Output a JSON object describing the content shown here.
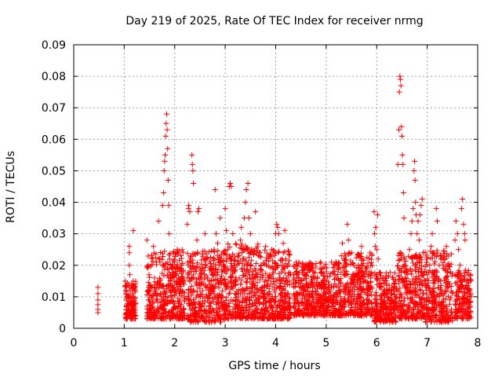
{
  "chart_data": {
    "type": "scatter",
    "title": "Day 219 of 2025, Rate Of TEC Index for receiver nrmg",
    "xlabel": "GPS time / hours",
    "ylabel": "ROTI / TECUs",
    "xlim": [
      0,
      8
    ],
    "ylim": [
      0,
      0.09
    ],
    "xticks": [
      0,
      1,
      2,
      3,
      4,
      5,
      6,
      7,
      8
    ],
    "xtick_labels": [
      "0",
      "1",
      "2",
      "3",
      "4",
      "5",
      "6",
      "7",
      "8"
    ],
    "yticks": [
      0,
      0.01,
      0.02,
      0.03,
      0.04,
      0.05,
      0.06,
      0.07,
      0.08,
      0.09
    ],
    "ytick_labels": [
      "0",
      "0.01",
      "0.02",
      "0.03",
      "0.04",
      "0.05",
      "0.06",
      "0.07",
      "0.08",
      "0.09"
    ],
    "grid": true,
    "marker": "plus",
    "color": "#ff0000",
    "series": [
      {
        "name": "ROTI",
        "points": [
          [
            0.48,
            0.013
          ],
          [
            0.48,
            0.011
          ],
          [
            0.48,
            0.009
          ],
          [
            0.48,
            0.0075
          ],
          [
            0.48,
            0.006
          ],
          [
            0.48,
            0.005
          ],
          [
            1.02,
            0.015
          ],
          [
            1.03,
            0.012
          ],
          [
            1.04,
            0.009
          ],
          [
            1.05,
            0.007
          ],
          [
            1.05,
            0.005
          ],
          [
            1.06,
            0.003
          ],
          [
            1.07,
            0.004
          ],
          [
            1.08,
            0.006
          ],
          [
            1.08,
            0.01
          ],
          [
            1.09,
            0.014
          ],
          [
            1.1,
            0.02
          ],
          [
            1.1,
            0.024
          ],
          [
            1.1,
            0.026
          ],
          [
            1.11,
            0.017
          ],
          [
            1.12,
            0.012
          ],
          [
            1.12,
            0.008
          ],
          [
            1.13,
            0.005
          ],
          [
            1.14,
            0.003
          ],
          [
            1.15,
            0.007
          ],
          [
            1.16,
            0.011
          ],
          [
            1.18,
            0.031
          ],
          [
            1.18,
            0.015
          ],
          [
            1.19,
            0.01
          ],
          [
            1.2,
            0.007
          ],
          [
            1.21,
            0.005
          ],
          [
            1.22,
            0.012
          ],
          [
            1.23,
            0.008
          ],
          [
            1.45,
            0.028
          ],
          [
            1.47,
            0.02
          ],
          [
            1.48,
            0.012
          ],
          [
            1.5,
            0.009
          ],
          [
            1.52,
            0.007
          ],
          [
            1.55,
            0.013
          ],
          [
            1.58,
            0.026
          ],
          [
            1.6,
            0.016
          ],
          [
            1.62,
            0.011
          ],
          [
            1.65,
            0.009
          ],
          [
            1.68,
            0.034
          ],
          [
            1.7,
            0.022
          ],
          [
            1.72,
            0.014
          ],
          [
            1.74,
            0.01
          ],
          [
            1.75,
            0.006
          ],
          [
            1.76,
            0.039
          ],
          [
            1.78,
            0.043
          ],
          [
            1.79,
            0.05
          ],
          [
            1.8,
            0.053
          ],
          [
            1.81,
            0.055
          ],
          [
            1.82,
            0.061
          ],
          [
            1.83,
            0.065
          ],
          [
            1.84,
            0.068
          ],
          [
            1.85,
            0.063
          ],
          [
            1.86,
            0.057
          ],
          [
            1.87,
            0.047
          ],
          [
            1.88,
            0.039
          ],
          [
            1.89,
            0.03
          ],
          [
            1.9,
            0.022
          ],
          [
            1.92,
            0.015
          ],
          [
            1.94,
            0.01
          ],
          [
            1.96,
            0.006
          ],
          [
            1.98,
            0.004
          ],
          [
            2.0,
            0.012
          ],
          [
            2.02,
            0.018
          ],
          [
            2.05,
            0.025
          ],
          [
            2.08,
            0.016
          ],
          [
            2.1,
            0.011
          ],
          [
            2.12,
            0.007
          ],
          [
            2.14,
            0.005
          ],
          [
            2.18,
            0.015
          ],
          [
            2.2,
            0.009
          ],
          [
            2.25,
            0.033
          ],
          [
            2.27,
            0.038
          ],
          [
            2.28,
            0.039
          ],
          [
            2.3,
            0.037
          ],
          [
            2.32,
            0.023
          ],
          [
            2.34,
            0.055
          ],
          [
            2.35,
            0.052
          ],
          [
            2.36,
            0.05
          ],
          [
            2.37,
            0.046
          ],
          [
            2.38,
            0.012
          ],
          [
            2.39,
            0.008
          ],
          [
            2.4,
            0.005
          ],
          [
            2.42,
            0.003
          ],
          [
            2.44,
            0.028
          ],
          [
            2.46,
            0.037
          ],
          [
            2.48,
            0.038
          ],
          [
            2.5,
            0.019
          ],
          [
            2.52,
            0.014
          ],
          [
            2.55,
            0.01
          ],
          [
            2.58,
            0.007
          ],
          [
            2.6,
            0.03
          ],
          [
            2.62,
            0.022
          ],
          [
            2.65,
            0.016
          ],
          [
            2.68,
            0.012
          ],
          [
            2.7,
            0.008
          ],
          [
            2.72,
            0.005
          ],
          [
            2.75,
            0.017
          ],
          [
            2.78,
            0.025
          ],
          [
            2.8,
            0.044
          ],
          [
            2.82,
            0.03
          ],
          [
            2.85,
            0.027
          ],
          [
            2.88,
            0.02
          ],
          [
            2.9,
            0.035
          ],
          [
            2.92,
            0.014
          ],
          [
            2.95,
            0.01
          ],
          [
            2.98,
            0.006
          ],
          [
            3.0,
            0.038
          ],
          [
            3.02,
            0.031
          ],
          [
            3.05,
            0.025
          ],
          [
            3.08,
            0.045
          ],
          [
            3.1,
            0.046
          ],
          [
            3.12,
            0.045
          ],
          [
            3.15,
            0.03
          ],
          [
            3.18,
            0.02
          ],
          [
            3.2,
            0.015
          ],
          [
            3.22,
            0.011
          ],
          [
            3.25,
            0.007
          ],
          [
            3.28,
            0.004
          ],
          [
            3.3,
            0.028
          ],
          [
            3.32,
            0.032
          ],
          [
            3.35,
            0.022
          ],
          [
            3.38,
            0.035
          ],
          [
            3.4,
            0.04
          ],
          [
            3.42,
            0.044
          ],
          [
            3.45,
            0.046
          ],
          [
            3.47,
            0.035
          ],
          [
            3.5,
            0.03
          ],
          [
            3.52,
            0.025
          ],
          [
            3.55,
            0.018
          ],
          [
            3.58,
            0.013
          ],
          [
            3.6,
            0.037
          ],
          [
            3.62,
            0.009
          ],
          [
            3.65,
            0.006
          ],
          [
            3.68,
            0.024
          ],
          [
            3.7,
            0.017
          ],
          [
            3.72,
            0.012
          ],
          [
            3.75,
            0.008
          ],
          [
            3.78,
            0.005
          ],
          [
            3.8,
            0.026
          ],
          [
            3.82,
            0.02
          ],
          [
            3.85,
            0.015
          ],
          [
            3.88,
            0.011
          ],
          [
            3.9,
            0.007
          ],
          [
            3.92,
            0.025
          ],
          [
            3.95,
            0.019
          ],
          [
            3.98,
            0.014
          ],
          [
            4.0,
            0.03
          ],
          [
            4.02,
            0.033
          ],
          [
            4.04,
            0.032
          ],
          [
            4.06,
            0.03
          ],
          [
            4.08,
            0.013
          ],
          [
            4.1,
            0.009
          ],
          [
            4.12,
            0.006
          ],
          [
            4.15,
            0.027
          ],
          [
            4.18,
            0.031
          ],
          [
            4.2,
            0.022
          ],
          [
            4.22,
            0.016
          ],
          [
            4.25,
            0.011
          ],
          [
            4.28,
            0.007
          ],
          [
            4.3,
            0.004
          ],
          [
            4.4,
            0.01
          ],
          [
            4.45,
            0.008
          ],
          [
            4.5,
            0.015
          ],
          [
            4.55,
            0.012
          ],
          [
            4.6,
            0.009
          ],
          [
            4.65,
            0.02
          ],
          [
            4.7,
            0.007
          ],
          [
            4.75,
            0.016
          ],
          [
            4.8,
            0.011
          ],
          [
            4.85,
            0.008
          ],
          [
            4.9,
            0.014
          ],
          [
            4.95,
            0.01
          ],
          [
            5.0,
            0.019
          ],
          [
            5.05,
            0.007
          ],
          [
            5.1,
            0.013
          ],
          [
            5.15,
            0.009
          ],
          [
            5.2,
            0.016
          ],
          [
            5.25,
            0.012
          ],
          [
            5.3,
            0.023
          ],
          [
            5.32,
            0.027
          ],
          [
            5.35,
            0.022
          ],
          [
            5.38,
            0.011
          ],
          [
            5.4,
            0.018
          ],
          [
            5.42,
            0.033
          ],
          [
            5.44,
            0.028
          ],
          [
            5.45,
            0.024
          ],
          [
            5.48,
            0.014
          ],
          [
            5.5,
            0.01
          ],
          [
            5.55,
            0.02
          ],
          [
            5.6,
            0.017
          ],
          [
            5.65,
            0.011
          ],
          [
            5.7,
            0.026
          ],
          [
            5.72,
            0.022
          ],
          [
            5.75,
            0.015
          ],
          [
            5.8,
            0.009
          ],
          [
            5.85,
            0.013
          ],
          [
            5.9,
            0.008
          ],
          [
            5.95,
            0.037
          ],
          [
            5.96,
            0.03
          ],
          [
            5.97,
            0.026
          ],
          [
            5.98,
            0.032
          ],
          [
            6.0,
            0.025
          ],
          [
            6.02,
            0.036
          ],
          [
            6.03,
            0.022
          ],
          [
            6.05,
            0.013
          ],
          [
            6.08,
            0.009
          ],
          [
            6.1,
            0.006
          ],
          [
            6.12,
            0.016
          ],
          [
            6.15,
            0.011
          ],
          [
            6.18,
            0.008
          ],
          [
            6.2,
            0.005
          ],
          [
            6.25,
            0.012
          ],
          [
            6.3,
            0.009
          ],
          [
            6.35,
            0.014
          ],
          [
            6.38,
            0.01
          ],
          [
            6.4,
            0.007
          ],
          [
            6.42,
            0.052
          ],
          [
            6.44,
            0.063
          ],
          [
            6.45,
            0.075
          ],
          [
            6.46,
            0.08
          ],
          [
            6.47,
            0.079
          ],
          [
            6.48,
            0.077
          ],
          [
            6.49,
            0.064
          ],
          [
            6.5,
            0.061
          ],
          [
            6.51,
            0.055
          ],
          [
            6.52,
            0.052
          ],
          [
            6.53,
            0.043
          ],
          [
            6.54,
            0.035
          ],
          [
            6.55,
            0.022
          ],
          [
            6.58,
            0.016
          ],
          [
            6.6,
            0.011
          ],
          [
            6.62,
            0.007
          ],
          [
            6.65,
            0.025
          ],
          [
            6.68,
            0.03
          ],
          [
            6.7,
            0.034
          ],
          [
            6.72,
            0.038
          ],
          [
            6.74,
            0.05
          ],
          [
            6.75,
            0.053
          ],
          [
            6.76,
            0.047
          ],
          [
            6.77,
            0.04
          ],
          [
            6.78,
            0.036
          ],
          [
            6.8,
            0.03
          ],
          [
            6.82,
            0.034
          ],
          [
            6.84,
            0.028
          ],
          [
            6.86,
            0.036
          ],
          [
            6.88,
            0.039
          ],
          [
            6.9,
            0.041
          ],
          [
            6.92,
            0.024
          ],
          [
            6.95,
            0.018
          ],
          [
            6.98,
            0.013
          ],
          [
            7.0,
            0.009
          ],
          [
            7.02,
            0.006
          ],
          [
            7.05,
            0.02
          ],
          [
            7.08,
            0.026
          ],
          [
            7.1,
            0.03
          ],
          [
            7.12,
            0.024
          ],
          [
            7.15,
            0.018
          ],
          [
            7.18,
            0.038
          ],
          [
            7.2,
            0.034
          ],
          [
            7.22,
            0.015
          ],
          [
            7.25,
            0.011
          ],
          [
            7.28,
            0.008
          ],
          [
            7.3,
            0.005
          ],
          [
            7.32,
            0.019
          ],
          [
            7.35,
            0.022
          ],
          [
            7.38,
            0.026
          ],
          [
            7.4,
            0.018
          ],
          [
            7.42,
            0.013
          ],
          [
            7.45,
            0.009
          ],
          [
            7.48,
            0.006
          ],
          [
            7.5,
            0.003
          ],
          [
            7.55,
            0.028
          ],
          [
            7.57,
            0.034
          ],
          [
            7.6,
            0.03
          ],
          [
            7.62,
            0.025
          ],
          [
            7.65,
            0.02
          ],
          [
            7.68,
            0.038
          ],
          [
            7.7,
            0.041
          ],
          [
            7.72,
            0.033
          ],
          [
            7.74,
            0.03
          ],
          [
            7.75,
            0.028
          ],
          [
            7.76,
            0.013
          ],
          [
            7.78,
            0.009
          ],
          [
            7.8,
            0.006
          ],
          [
            7.82,
            0.004
          ],
          [
            7.84,
            0.012
          ],
          [
            7.85,
            0.015
          ],
          [
            7.86,
            0.017
          ],
          [
            7.87,
            0.01
          ]
        ],
        "band_segments": [
          [
            1.02,
            1.23,
            0.003,
            0.015
          ],
          [
            1.45,
            2.2,
            0.003,
            0.025
          ],
          [
            2.25,
            3.0,
            0.002,
            0.025
          ],
          [
            3.0,
            3.7,
            0.003,
            0.027
          ],
          [
            3.7,
            4.3,
            0.003,
            0.025
          ],
          [
            4.35,
            5.35,
            0.004,
            0.021
          ],
          [
            5.35,
            5.92,
            0.004,
            0.024
          ],
          [
            5.95,
            6.4,
            0.002,
            0.018
          ],
          [
            6.4,
            6.95,
            0.003,
            0.024
          ],
          [
            6.95,
            7.5,
            0.002,
            0.025
          ],
          [
            7.55,
            7.87,
            0.003,
            0.019
          ]
        ]
      }
    ]
  }
}
